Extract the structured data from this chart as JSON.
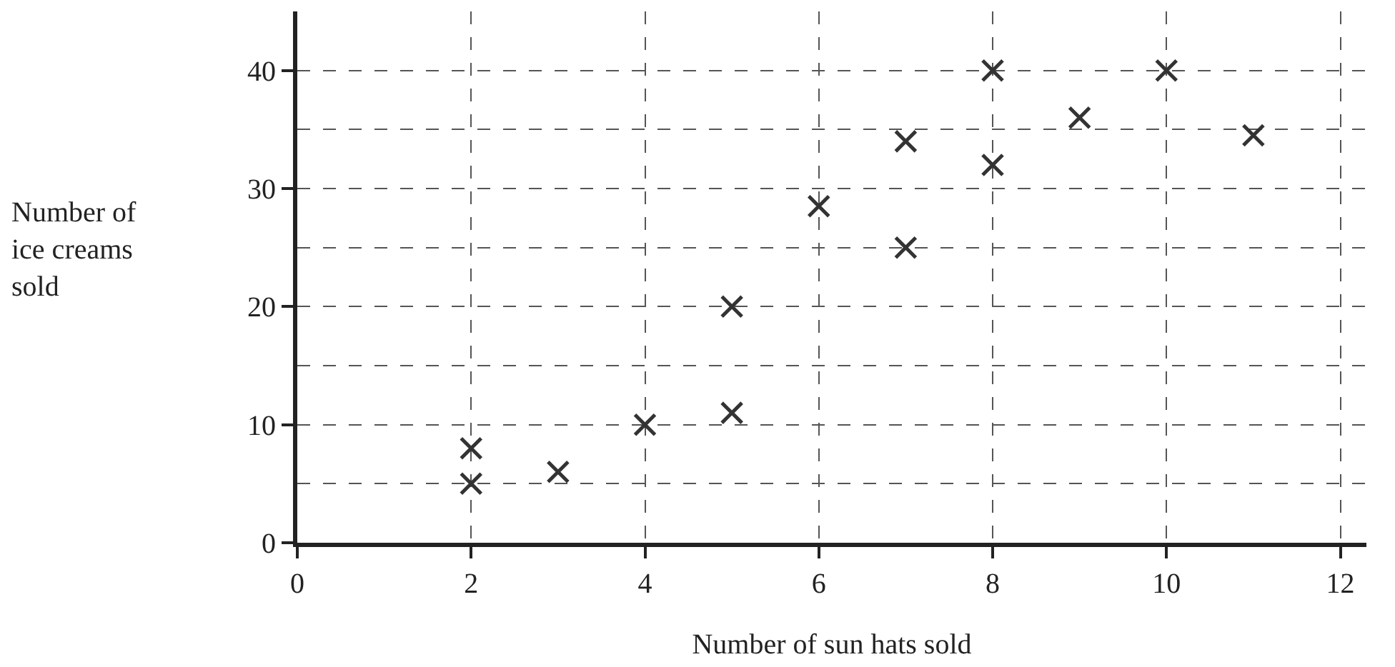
{
  "chart_data": {
    "type": "scatter",
    "xlabel": "Number of sun hats sold",
    "ylabel": "Number of ice creams sold",
    "x": [
      2,
      2,
      3,
      4,
      5,
      5,
      6,
      7,
      7,
      8,
      8,
      9,
      10,
      11
    ],
    "values": [
      8,
      5,
      6,
      10,
      11,
      20,
      28.5,
      34,
      25,
      40,
      32,
      36,
      40,
      34.5
    ],
    "color": "#333333",
    "marker": "cross",
    "xlim": [
      0,
      12.3
    ],
    "ylim": [
      0,
      45
    ],
    "xticks": [
      0,
      2,
      4,
      6,
      8,
      10,
      12
    ],
    "yticks": [
      0,
      10,
      20,
      30,
      40
    ],
    "grid": true
  }
}
